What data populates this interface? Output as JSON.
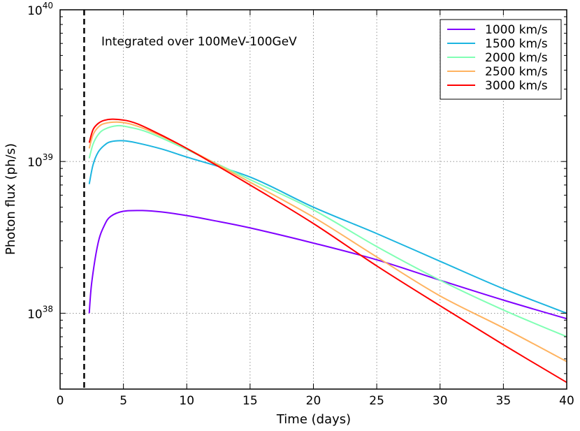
{
  "chart_data": {
    "type": "line",
    "title": "",
    "xlabel": "Time (days)",
    "ylabel": "Photon flux (ph/s)",
    "xlim": [
      0,
      40
    ],
    "ylim_log10": [
      37.5,
      40
    ],
    "yscale": "log",
    "grid": true,
    "legend_position": "top-right",
    "annotation": "Integrated over 100MeV-100GeV",
    "vline_x": 1.9,
    "x_ticks": [
      {
        "value": 0,
        "label": "0"
      },
      {
        "value": 5,
        "label": "5"
      },
      {
        "value": 10,
        "label": "10"
      },
      {
        "value": 15,
        "label": "15"
      },
      {
        "value": 20,
        "label": "20"
      },
      {
        "value": 25,
        "label": "25"
      },
      {
        "value": 30,
        "label": "30"
      },
      {
        "value": 35,
        "label": "35"
      },
      {
        "value": 40,
        "label": "40"
      }
    ],
    "y_ticks": [
      {
        "exp": 38,
        "base": "10",
        "sup": "38"
      },
      {
        "exp": 39,
        "base": "10",
        "sup": "39"
      },
      {
        "exp": 40,
        "base": "10",
        "sup": "40"
      }
    ],
    "series": [
      {
        "name": "1000 km/s",
        "color": "#8000ff",
        "points": [
          [
            2.3,
            1e+38
          ],
          [
            2.5,
            1.6e+38
          ],
          [
            3.0,
            2.9e+38
          ],
          [
            3.5,
            3.8e+38
          ],
          [
            4.0,
            4.35e+38
          ],
          [
            5.0,
            4.7e+38
          ],
          [
            6.5,
            4.75e+38
          ],
          [
            8.0,
            4.65e+38
          ],
          [
            10,
            4.4e+38
          ],
          [
            12,
            4.1e+38
          ],
          [
            15,
            3.65e+38
          ],
          [
            20,
            2.9e+38
          ],
          [
            25,
            2.25e+38
          ],
          [
            30,
            1.65e+38
          ],
          [
            35,
            1.22e+38
          ],
          [
            40,
            9.2e+37
          ]
        ]
      },
      {
        "name": "1500 km/s",
        "color": "#1cb5e0",
        "points": [
          [
            2.3,
            7.1e+38
          ],
          [
            2.6,
            9.5e+38
          ],
          [
            3.0,
            1.15e+39
          ],
          [
            3.5,
            1.28e+39
          ],
          [
            4.0,
            1.35e+39
          ],
          [
            5.0,
            1.37e+39
          ],
          [
            6.0,
            1.33e+39
          ],
          [
            8.0,
            1.21e+39
          ],
          [
            10,
            1.07e+39
          ],
          [
            15,
            7.9e+38
          ],
          [
            20,
            5e+38
          ],
          [
            25,
            3.35e+38
          ],
          [
            30,
            2.2e+38
          ],
          [
            35,
            1.45e+38
          ],
          [
            40,
            1e+38
          ]
        ]
      },
      {
        "name": "2000 km/s",
        "color": "#80ffb4",
        "points": [
          [
            2.3,
            1.05e+39
          ],
          [
            2.6,
            1.3e+39
          ],
          [
            3.0,
            1.5e+39
          ],
          [
            3.5,
            1.63e+39
          ],
          [
            4.5,
            1.72e+39
          ],
          [
            5.5,
            1.68e+39
          ],
          [
            7.0,
            1.55e+39
          ],
          [
            10,
            1.2e+39
          ],
          [
            15,
            7.6e+38
          ],
          [
            20,
            4.8e+38
          ],
          [
            25,
            2.75e+38
          ],
          [
            30,
            1.65e+38
          ],
          [
            35,
            1.05e+38
          ],
          [
            40,
            7e+37
          ]
        ]
      },
      {
        "name": "2500 km/s",
        "color": "#ffb360",
        "points": [
          [
            2.3,
            1.22e+39
          ],
          [
            2.6,
            1.5e+39
          ],
          [
            3.0,
            1.68e+39
          ],
          [
            3.5,
            1.78e+39
          ],
          [
            4.5,
            1.82e+39
          ],
          [
            5.5,
            1.77e+39
          ],
          [
            7.0,
            1.6e+39
          ],
          [
            10,
            1.22e+39
          ],
          [
            15,
            7.3e+38
          ],
          [
            20,
            4.3e+38
          ],
          [
            25,
            2.35e+38
          ],
          [
            30,
            1.3e+38
          ],
          [
            35,
            8e+37
          ],
          [
            40,
            4.8e+37
          ]
        ]
      },
      {
        "name": "3000 km/s",
        "color": "#ff0000",
        "points": [
          [
            2.3,
            1.33e+39
          ],
          [
            2.6,
            1.62e+39
          ],
          [
            3.0,
            1.78e+39
          ],
          [
            3.5,
            1.87e+39
          ],
          [
            4.2,
            1.9e+39
          ],
          [
            5.5,
            1.84e+39
          ],
          [
            7.0,
            1.64e+39
          ],
          [
            10,
            1.22e+39
          ],
          [
            15,
            7e+38
          ],
          [
            20,
            3.9e+38
          ],
          [
            25,
            2.05e+38
          ],
          [
            30,
            1.12e+38
          ],
          [
            35,
            6.2e+37
          ],
          [
            40,
            3.5e+37
          ]
        ]
      }
    ]
  }
}
